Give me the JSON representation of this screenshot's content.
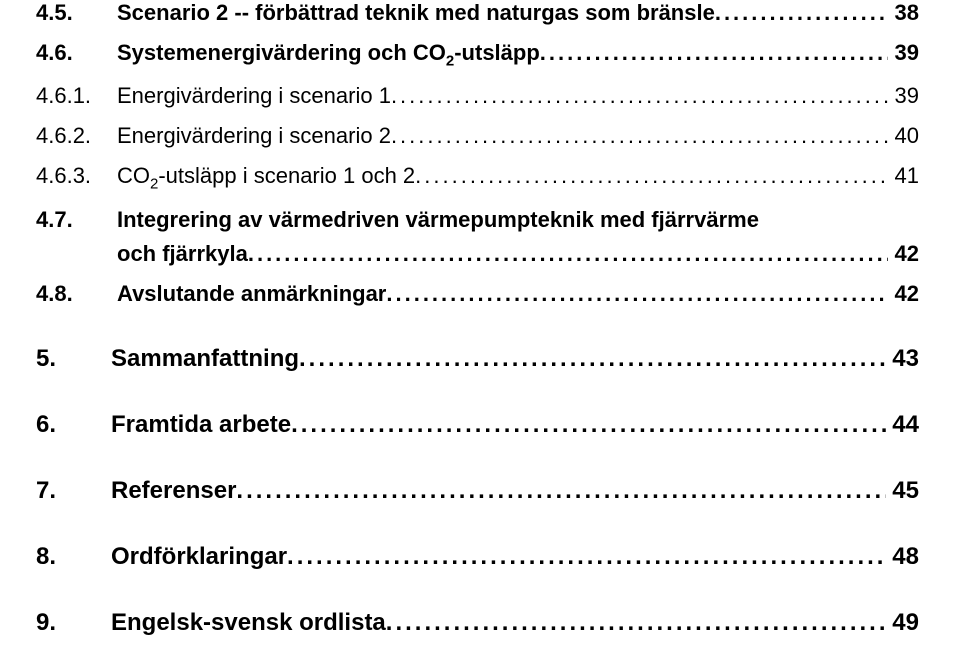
{
  "rows": [
    {
      "type": "sub",
      "num": "4.5.",
      "title": "Scenario 2 -- förbättrad teknik med naturgas som bränsle",
      "page": "38",
      "bold": true
    },
    {
      "type": "sub",
      "num": "4.6.",
      "title": "Systemenergivärdering och CO",
      "co2": true,
      "after": "-utsläpp",
      "page": "39",
      "bold": true
    },
    {
      "type": "sub",
      "num": "4.6.1.",
      "title": "Energivärdering i scenario 1",
      "page": "39",
      "bold": false
    },
    {
      "type": "sub",
      "num": "4.6.2.",
      "title": "Energivärdering i scenario 2",
      "page": "40",
      "bold": false
    },
    {
      "type": "sub",
      "num": "4.6.3.",
      "title": "CO",
      "co2": true,
      "after": "-utsläpp i scenario 1 och 2",
      "page": "41",
      "bold": false
    },
    {
      "type": "sub2",
      "num": "4.7.",
      "title": "Integrering av värmedriven värmepumpteknik med fjärrvärme",
      "title2": "och fjärrkyla",
      "page": "42",
      "bold": true
    },
    {
      "type": "sub",
      "num": "4.8.",
      "title": "Avslutande anmärkningar",
      "page": "42",
      "bold": true
    },
    {
      "type": "main",
      "num": "5.",
      "title": "Sammanfattning",
      "page": "43"
    },
    {
      "type": "main",
      "num": "6.",
      "title": "Framtida arbete",
      "page": "44"
    },
    {
      "type": "main",
      "num": "7.",
      "title": "Referenser",
      "page": "45"
    },
    {
      "type": "main",
      "num": "8.",
      "title": "Ordförklaringar",
      "page": "48"
    },
    {
      "type": "main",
      "num": "9.",
      "title": "Engelsk-svensk ordlista",
      "page": "49"
    }
  ],
  "leader_char": "."
}
